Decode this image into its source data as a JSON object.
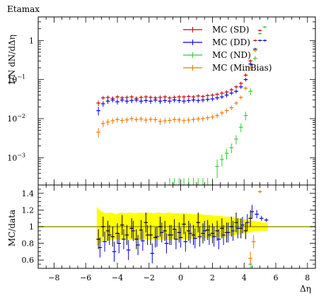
{
  "title": "Etamax",
  "chart_data": [
    {
      "type": "scatter",
      "panel": "main",
      "ylabel": "1/N dN/dΔη",
      "yscale": "log",
      "xlim": [
        -9,
        8.5
      ],
      "ylim": [
        0.0002,
        4
      ],
      "yticks": [
        {
          "v": 0.001,
          "m": "10",
          "e": "−3"
        },
        {
          "v": 0.01,
          "m": "10",
          "e": "−2"
        },
        {
          "v": 0.1,
          "m": "10",
          "e": "−1"
        },
        {
          "v": 1,
          "m": "1",
          "e": ""
        }
      ],
      "legend": "top-right",
      "series": [
        {
          "name": "MC (SD)",
          "color": "#cc0000",
          "x": [
            -5.2,
            -4.9,
            -4.6,
            -4.3,
            -4.0,
            -3.7,
            -3.4,
            -3.1,
            -2.8,
            -2.5,
            -2.2,
            -1.9,
            -1.6,
            -1.3,
            -1.0,
            -0.7,
            -0.4,
            -0.1,
            0.2,
            0.5,
            0.8,
            1.1,
            1.4,
            1.7,
            2.0,
            2.3,
            2.6,
            2.9,
            3.2,
            3.5,
            3.8,
            4.1,
            4.4,
            4.7,
            5.0
          ],
          "y": [
            0.025,
            0.034,
            0.035,
            0.033,
            0.036,
            0.034,
            0.035,
            0.036,
            0.033,
            0.035,
            0.036,
            0.035,
            0.034,
            0.035,
            0.036,
            0.034,
            0.035,
            0.036,
            0.036,
            0.037,
            0.036,
            0.038,
            0.037,
            0.039,
            0.04,
            0.042,
            0.045,
            0.048,
            0.055,
            0.065,
            0.08,
            0.13,
            0.3,
            1.0,
            1.8
          ],
          "yerr": [
            0.004,
            0.004,
            0.004,
            0.004,
            0.004,
            0.004,
            0.004,
            0.004,
            0.004,
            0.004,
            0.004,
            0.004,
            0.004,
            0.004,
            0.004,
            0.004,
            0.004,
            0.004,
            0.004,
            0.004,
            0.004,
            0.004,
            0.004,
            0.004,
            0.004,
            0.004,
            0.005,
            0.005,
            0.006,
            0.007,
            0.008,
            0.012,
            0.03,
            0.06,
            0.1
          ]
        },
        {
          "name": "MC (DD)",
          "color": "#0000dd",
          "x": [
            -5.2,
            -4.9,
            -4.6,
            -4.3,
            -4.0,
            -3.7,
            -3.4,
            -3.1,
            -2.8,
            -2.5,
            -2.2,
            -1.9,
            -1.6,
            -1.3,
            -1.0,
            -0.7,
            -0.4,
            -0.1,
            0.2,
            0.5,
            0.8,
            1.1,
            1.4,
            1.7,
            2.0,
            2.3,
            2.6,
            2.9,
            3.2,
            3.5,
            3.8,
            4.1,
            4.4,
            4.7,
            5.0,
            5.3
          ],
          "y": [
            0.016,
            0.024,
            0.028,
            0.03,
            0.027,
            0.03,
            0.028,
            0.029,
            0.03,
            0.028,
            0.029,
            0.028,
            0.03,
            0.028,
            0.029,
            0.028,
            0.03,
            0.029,
            0.028,
            0.029,
            0.03,
            0.029,
            0.03,
            0.031,
            0.032,
            0.034,
            0.036,
            0.04,
            0.045,
            0.05,
            0.065,
            0.1,
            0.25,
            0.6,
            1.0,
            1.0
          ],
          "yerr": [
            0.004,
            0.004,
            0.004,
            0.004,
            0.004,
            0.004,
            0.004,
            0.004,
            0.004,
            0.004,
            0.004,
            0.004,
            0.004,
            0.004,
            0.004,
            0.004,
            0.004,
            0.004,
            0.004,
            0.004,
            0.004,
            0.004,
            0.004,
            0.004,
            0.004,
            0.004,
            0.004,
            0.005,
            0.005,
            0.006,
            0.007,
            0.01,
            0.03,
            0.05,
            0.06,
            0.06
          ]
        },
        {
          "name": "MC (ND)",
          "color": "#33cc33",
          "x": [
            -0.7,
            -0.4,
            -0.1,
            0.2,
            0.5,
            0.8,
            1.1,
            1.4,
            1.7,
            2.0,
            2.3,
            2.6,
            2.9,
            3.2,
            3.5,
            3.8,
            4.1,
            4.4,
            4.7,
            5.0,
            5.3
          ],
          "y": [
            0.0002,
            0.0002,
            0.0002,
            0.0002,
            0.0002,
            0.0002,
            0.0002,
            0.0002,
            0.0002,
            0.0002,
            0.0006,
            0.0009,
            0.0013,
            0.0018,
            0.003,
            0.006,
            0.012,
            0.05,
            0.35,
            1.5,
            2.2
          ],
          "yerr": [
            0.0001,
            0.0001,
            0.0001,
            0.0001,
            0.0001,
            0.0001,
            0.0001,
            0.0001,
            0.0001,
            0.0001,
            0.0003,
            0.0003,
            0.0004,
            0.0005,
            0.0008,
            0.0015,
            0.003,
            0.01,
            0.05,
            0.1,
            0.15
          ]
        },
        {
          "name": "MC (MinBias)",
          "color": "#ee7700",
          "x": [
            -5.2,
            -4.9,
            -4.6,
            -4.3,
            -4.0,
            -3.7,
            -3.4,
            -3.1,
            -2.8,
            -2.5,
            -2.2,
            -1.9,
            -1.6,
            -1.3,
            -1.0,
            -0.7,
            -0.4,
            -0.1,
            0.2,
            0.5,
            0.8,
            1.1,
            1.4,
            1.7,
            2.0,
            2.3,
            2.6,
            2.9,
            3.2,
            3.5,
            3.8,
            4.1,
            4.4,
            4.7
          ],
          "y": [
            0.0045,
            0.0075,
            0.0082,
            0.0088,
            0.0095,
            0.009,
            0.0093,
            0.01,
            0.0095,
            0.0098,
            0.0092,
            0.0096,
            0.0094,
            0.0085,
            0.0088,
            0.009,
            0.0095,
            0.0093,
            0.0089,
            0.0092,
            0.0095,
            0.0098,
            0.01,
            0.0105,
            0.011,
            0.012,
            0.014,
            0.016,
            0.019,
            0.025,
            0.035,
            0.06,
            0.2,
            0.55
          ],
          "yerr": [
            0.0012,
            0.0015,
            0.0015,
            0.0015,
            0.0015,
            0.0015,
            0.0015,
            0.0015,
            0.0015,
            0.0015,
            0.0015,
            0.0015,
            0.0015,
            0.0015,
            0.0015,
            0.0015,
            0.0015,
            0.0015,
            0.0015,
            0.0015,
            0.0015,
            0.0015,
            0.0015,
            0.0015,
            0.0015,
            0.0017,
            0.002,
            0.0022,
            0.0025,
            0.003,
            0.004,
            0.007,
            0.02,
            0.05
          ]
        }
      ]
    },
    {
      "type": "scatter",
      "panel": "ratio",
      "ylabel": "MC/data",
      "xlabel": "Δη",
      "xlim": [
        -9,
        8.5
      ],
      "ylim": [
        0.5,
        1.5
      ],
      "xticks": [
        -8,
        -6,
        -4,
        -2,
        0,
        2,
        4,
        6,
        8
      ],
      "yticks": [
        0.6,
        0.8,
        1,
        1.2,
        1.4
      ],
      "reference_line": 1,
      "reference_color": "#999900",
      "band_color": "#ffff00",
      "band": {
        "x": [
          -5.3,
          -5.0,
          -4.7,
          -4.4,
          -4.1,
          -3.8,
          -3.5,
          -3.2,
          -2.9,
          -2.6,
          -2.3,
          -2.0,
          -1.7,
          -1.4,
          -1.1,
          -0.8,
          -0.5,
          -0.2,
          0.1,
          0.4,
          0.7,
          1.0,
          1.3,
          1.6,
          1.9,
          2.2,
          2.5,
          2.8,
          3.1,
          3.4,
          3.7,
          4.0,
          4.3,
          4.6,
          4.9,
          5.2,
          5.5
        ],
        "hi": [
          1.24,
          1.18,
          1.16,
          1.17,
          1.15,
          1.17,
          1.16,
          1.17,
          1.16,
          1.17,
          1.16,
          1.17,
          1.16,
          1.17,
          1.16,
          1.17,
          1.16,
          1.16,
          1.16,
          1.16,
          1.15,
          1.15,
          1.15,
          1.14,
          1.14,
          1.13,
          1.13,
          1.12,
          1.12,
          1.11,
          1.1,
          1.09,
          1.08,
          1.07,
          1.06,
          1.05,
          1.05
        ],
        "lo": [
          0.77,
          0.82,
          0.83,
          0.84,
          0.85,
          0.84,
          0.85,
          0.84,
          0.85,
          0.84,
          0.85,
          0.84,
          0.85,
          0.84,
          0.85,
          0.84,
          0.85,
          0.84,
          0.85,
          0.85,
          0.85,
          0.86,
          0.86,
          0.86,
          0.87,
          0.87,
          0.88,
          0.88,
          0.89,
          0.9,
          0.91,
          0.92,
          0.93,
          0.94,
          0.95,
          0.95,
          0.95
        ]
      },
      "series": [
        {
          "name": "MC (SD)",
          "color": "#000000",
          "x": [
            -5.2,
            -4.9,
            -4.6,
            -4.3,
            -4.0,
            -3.7,
            -3.4,
            -3.1,
            -2.8,
            -2.5,
            -2.2,
            -1.9,
            -1.6,
            -1.3,
            -1.0,
            -0.7,
            -0.4,
            -0.1,
            0.2,
            0.5,
            0.8,
            1.1,
            1.4,
            1.7,
            2.0,
            2.3,
            2.6,
            2.9,
            3.2,
            3.5,
            3.8,
            4.1,
            4.4
          ],
          "y": [
            0.85,
            1.0,
            0.95,
            0.88,
            0.92,
            1.02,
            0.9,
            0.98,
            0.85,
            0.96,
            1.05,
            0.9,
            0.87,
            1.0,
            0.95,
            0.9,
            0.97,
            0.93,
            1.03,
            0.95,
            0.9,
            1.05,
            0.92,
            0.96,
            0.92,
            0.95,
            0.98,
            0.93,
            1.0,
            1.05,
            0.98,
            0.95,
            1.1
          ],
          "yerr": [
            0.12,
            0.12,
            0.12,
            0.12,
            0.12,
            0.12,
            0.12,
            0.12,
            0.12,
            0.12,
            0.12,
            0.12,
            0.12,
            0.12,
            0.12,
            0.12,
            0.12,
            0.12,
            0.12,
            0.12,
            0.12,
            0.12,
            0.12,
            0.12,
            0.12,
            0.12,
            0.12,
            0.12,
            0.12,
            0.12,
            0.12,
            0.1,
            0.1
          ]
        },
        {
          "name": "MC (DD)",
          "color": "#0000dd",
          "x": [
            -5.1,
            -4.8,
            -4.5,
            -4.2,
            -3.9,
            -3.6,
            -3.3,
            -3.0,
            -2.7,
            -2.4,
            -2.1,
            -1.8,
            -1.5,
            -1.2,
            -0.9,
            -0.6,
            -0.3,
            0.0,
            0.3,
            0.6,
            0.9,
            1.2,
            1.5,
            1.8,
            2.1,
            2.4,
            2.7,
            3.0,
            3.3,
            3.6,
            3.9,
            4.2,
            4.5,
            4.8,
            5.1,
            5.4
          ],
          "y": [
            0.75,
            0.82,
            0.9,
            0.7,
            0.8,
            0.85,
            0.72,
            0.95,
            0.78,
            0.83,
            0.9,
            0.68,
            0.88,
            0.93,
            0.8,
            0.9,
            0.85,
            0.87,
            0.82,
            0.92,
            0.86,
            0.88,
            0.95,
            0.9,
            0.88,
            0.85,
            0.9,
            0.93,
            0.95,
            0.98,
            1.02,
            1.05,
            1.18,
            1.15,
            1.1,
            1.08
          ],
          "yerr": [
            0.12,
            0.12,
            0.12,
            0.12,
            0.12,
            0.12,
            0.12,
            0.12,
            0.12,
            0.12,
            0.12,
            0.12,
            0.12,
            0.12,
            0.12,
            0.12,
            0.12,
            0.12,
            0.12,
            0.12,
            0.12,
            0.12,
            0.12,
            0.12,
            0.12,
            0.12,
            0.12,
            0.12,
            0.12,
            0.12,
            0.1,
            0.1,
            0.08,
            0.05,
            0.03,
            0.02
          ]
        },
        {
          "name": "MC (ND)",
          "color": "#33cc33",
          "x": [
            4.4
          ],
          "y": [
            0.55
          ],
          "yerr": [
            0.05
          ]
        },
        {
          "name": "MC (MinBias)",
          "color": "#ee7700",
          "x": [
            4.4,
            4.6,
            5.0
          ],
          "y": [
            0.62,
            0.82,
            1.42
          ],
          "yerr": [
            0.08,
            0.08,
            0.02
          ]
        }
      ]
    }
  ]
}
